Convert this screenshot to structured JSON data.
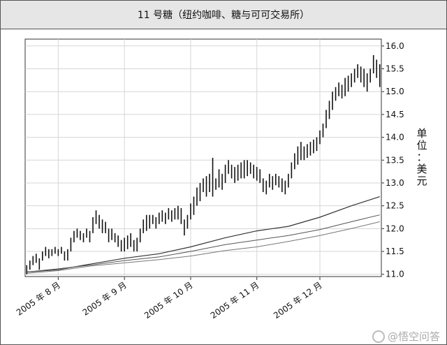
{
  "title": "11 号糖（纽约咖啡、糖与可可交易所）",
  "watermark": "@悟空问答",
  "chart_data": {
    "type": "ohlc",
    "title": "11 号糖（纽约咖啡、糖与可可交易所）",
    "ylabel": "单位：美元",
    "ylim": [
      10.95,
      16.15
    ],
    "yticks": [
      "11.0",
      "11.5",
      "12.0",
      "12.5",
      "13.0",
      "13.5",
      "14.0",
      "14.5",
      "15.0",
      "15.5",
      "16.0"
    ],
    "x_ticks": [
      {
        "label": "2005 年 8 月",
        "bar": 10
      },
      {
        "label": "2005 年 9 月",
        "bar": 31
      },
      {
        "label": "2005 年 10 月",
        "bar": 52
      },
      {
        "label": "2005 年 11 月",
        "bar": 73
      },
      {
        "label": "2005 年 12 月",
        "bar": 93
      }
    ],
    "grid": true,
    "n_bars": 113,
    "bars": [
      [
        11.0,
        11.2
      ],
      [
        11.1,
        11.3
      ],
      [
        11.2,
        11.4
      ],
      [
        11.25,
        11.45
      ],
      [
        11.1,
        11.35
      ],
      [
        11.3,
        11.5
      ],
      [
        11.4,
        11.6
      ],
      [
        11.35,
        11.55
      ],
      [
        11.4,
        11.55
      ],
      [
        11.45,
        11.6
      ],
      [
        11.4,
        11.55
      ],
      [
        11.45,
        11.6
      ],
      [
        11.3,
        11.5
      ],
      [
        11.3,
        11.55
      ],
      [
        11.5,
        11.8
      ],
      [
        11.7,
        11.95
      ],
      [
        11.8,
        12.0
      ],
      [
        11.75,
        11.95
      ],
      [
        11.7,
        11.9
      ],
      [
        11.8,
        12.0
      ],
      [
        11.7,
        11.95
      ],
      [
        11.9,
        12.25
      ],
      [
        12.1,
        12.4
      ],
      [
        12.0,
        12.3
      ],
      [
        11.9,
        12.2
      ],
      [
        11.9,
        12.15
      ],
      [
        11.7,
        12.0
      ],
      [
        11.75,
        12.0
      ],
      [
        11.7,
        11.9
      ],
      [
        11.6,
        11.85
      ],
      [
        11.5,
        11.75
      ],
      [
        11.5,
        11.8
      ],
      [
        11.55,
        11.85
      ],
      [
        11.6,
        11.9
      ],
      [
        11.5,
        11.75
      ],
      [
        11.5,
        11.8
      ],
      [
        11.7,
        12.0
      ],
      [
        11.9,
        12.2
      ],
      [
        11.95,
        12.3
      ],
      [
        12.0,
        12.3
      ],
      [
        12.1,
        12.3
      ],
      [
        12.0,
        12.25
      ],
      [
        12.1,
        12.35
      ],
      [
        12.15,
        12.4
      ],
      [
        12.1,
        12.35
      ],
      [
        12.2,
        12.45
      ],
      [
        12.15,
        12.4
      ],
      [
        12.2,
        12.45
      ],
      [
        12.2,
        12.5
      ],
      [
        12.1,
        12.45
      ],
      [
        11.85,
        12.2
      ],
      [
        12.0,
        12.3
      ],
      [
        12.2,
        12.55
      ],
      [
        12.3,
        12.7
      ],
      [
        12.5,
        12.9
      ],
      [
        12.6,
        13.0
      ],
      [
        12.8,
        13.1
      ],
      [
        12.7,
        13.15
      ],
      [
        12.8,
        13.2
      ],
      [
        12.7,
        13.55
      ],
      [
        12.85,
        13.1
      ],
      [
        12.9,
        13.3
      ],
      [
        12.85,
        13.2
      ],
      [
        13.0,
        13.4
      ],
      [
        13.2,
        13.5
      ],
      [
        13.1,
        13.4
      ],
      [
        13.0,
        13.35
      ],
      [
        13.05,
        13.4
      ],
      [
        13.1,
        13.45
      ],
      [
        13.1,
        13.5
      ],
      [
        13.15,
        13.5
      ],
      [
        13.2,
        13.45
      ],
      [
        13.1,
        13.4
      ],
      [
        13.05,
        13.35
      ],
      [
        13.0,
        13.3
      ],
      [
        12.8,
        13.1
      ],
      [
        12.75,
        13.05
      ],
      [
        12.9,
        13.2
      ],
      [
        12.85,
        13.15
      ],
      [
        12.95,
        13.2
      ],
      [
        12.9,
        13.15
      ],
      [
        12.8,
        13.1
      ],
      [
        12.75,
        13.05
      ],
      [
        12.9,
        13.2
      ],
      [
        13.1,
        13.45
      ],
      [
        13.3,
        13.65
      ],
      [
        13.4,
        13.8
      ],
      [
        13.5,
        13.9
      ],
      [
        13.5,
        13.8
      ],
      [
        13.55,
        13.85
      ],
      [
        13.6,
        13.9
      ],
      [
        13.65,
        13.95
      ],
      [
        13.7,
        14.0
      ],
      [
        13.85,
        14.15
      ],
      [
        14.0,
        14.3
      ],
      [
        14.2,
        14.6
      ],
      [
        14.4,
        14.8
      ],
      [
        14.6,
        15.0
      ],
      [
        14.8,
        15.1
      ],
      [
        14.9,
        15.2
      ],
      [
        14.85,
        15.15
      ],
      [
        14.9,
        15.3
      ],
      [
        15.0,
        15.35
      ],
      [
        15.1,
        15.4
      ],
      [
        15.2,
        15.5
      ],
      [
        15.3,
        15.6
      ],
      [
        15.2,
        15.55
      ],
      [
        15.1,
        15.5
      ],
      [
        15.0,
        15.4
      ],
      [
        15.2,
        15.5
      ],
      [
        15.4,
        15.8
      ],
      [
        15.3,
        15.7
      ],
      [
        15.1,
        15.6
      ]
    ],
    "moving_averages": [
      {
        "points": [
          [
            0,
            11.05
          ],
          [
            10,
            11.1
          ],
          [
            20,
            11.22
          ],
          [
            31,
            11.35
          ],
          [
            42,
            11.45
          ],
          [
            52,
            11.6
          ],
          [
            63,
            11.8
          ],
          [
            73,
            11.95
          ],
          [
            83,
            12.05
          ],
          [
            93,
            12.25
          ],
          [
            103,
            12.5
          ],
          [
            112,
            12.7
          ]
        ]
      },
      {
        "points": [
          [
            0,
            11.05
          ],
          [
            10,
            11.12
          ],
          [
            20,
            11.2
          ],
          [
            31,
            11.3
          ],
          [
            42,
            11.38
          ],
          [
            52,
            11.5
          ],
          [
            63,
            11.65
          ],
          [
            73,
            11.75
          ],
          [
            83,
            11.85
          ],
          [
            93,
            11.98
          ],
          [
            103,
            12.15
          ],
          [
            112,
            12.3
          ]
        ]
      },
      {
        "points": [
          [
            0,
            11.02
          ],
          [
            10,
            11.08
          ],
          [
            20,
            11.18
          ],
          [
            31,
            11.25
          ],
          [
            42,
            11.32
          ],
          [
            52,
            11.4
          ],
          [
            63,
            11.52
          ],
          [
            73,
            11.6
          ],
          [
            83,
            11.72
          ],
          [
            93,
            11.85
          ],
          [
            103,
            12.0
          ],
          [
            112,
            12.15
          ]
        ]
      }
    ]
  }
}
